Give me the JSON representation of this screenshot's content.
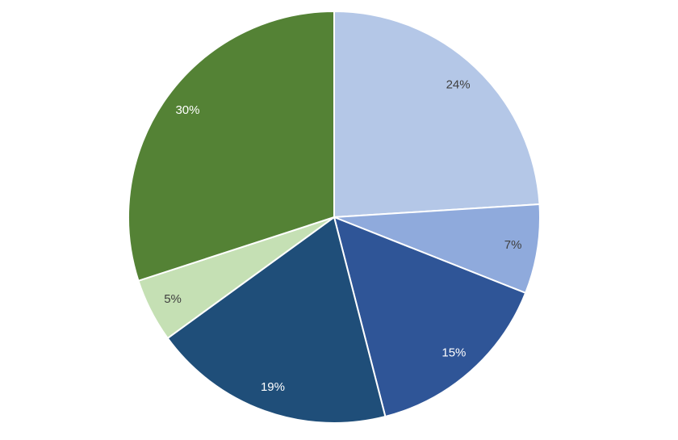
{
  "chart_data": {
    "type": "pie",
    "values": [
      24,
      7,
      15,
      19,
      5,
      30
    ],
    "value_labels": [
      "24%",
      "7%",
      "15%",
      "19%",
      "5%",
      "30%"
    ],
    "colors": [
      "#b4c7e7",
      "#8faadc",
      "#2f5597",
      "#1f4e79",
      "#c5e0b4",
      "#548235"
    ]
  }
}
